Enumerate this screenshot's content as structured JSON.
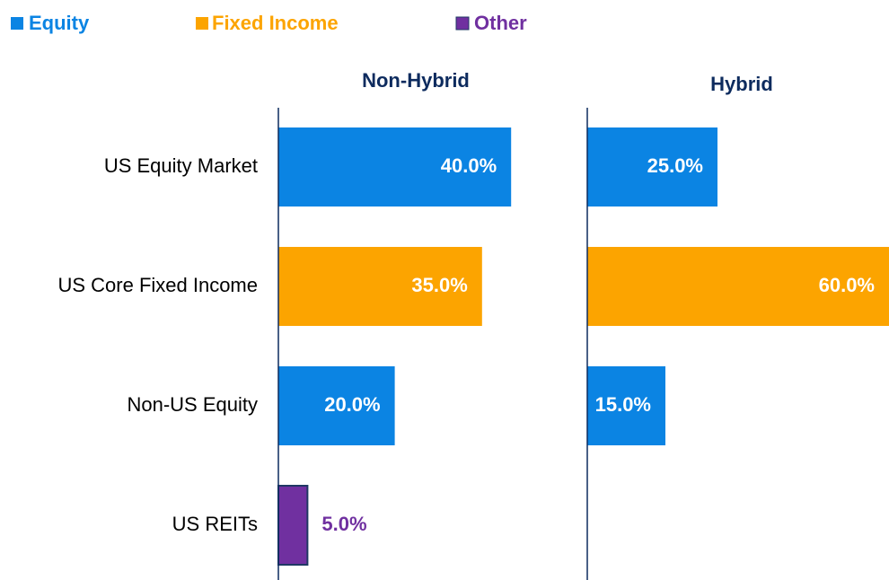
{
  "chart_data": {
    "type": "bar",
    "orientation": "horizontal",
    "categories": [
      "US Equity Market",
      "US Core Fixed Income",
      "Non-US Equity",
      "US REITs"
    ],
    "legend": [
      {
        "name": "Equity",
        "color": "#0b84e3"
      },
      {
        "name": "Fixed Income",
        "color": "#fca400"
      },
      {
        "name": "Other",
        "color": "#7030a0"
      }
    ],
    "panels": [
      {
        "title": "Non-Hybrid",
        "values": [
          40,
          35,
          20,
          5
        ],
        "value_labels": [
          "40.0%",
          "35.0%",
          "20.0%",
          "5.0%"
        ],
        "colors": [
          "#0b84e3",
          "#fca400",
          "#0b84e3",
          "#7030a0"
        ]
      },
      {
        "title": "Hybrid",
        "values": [
          25,
          60,
          15,
          null
        ],
        "value_labels": [
          "25.0%",
          "60.0%",
          "15.0%",
          null
        ],
        "colors": [
          "#0b84e3",
          "#fca400",
          "#0b84e3",
          null
        ]
      }
    ]
  }
}
